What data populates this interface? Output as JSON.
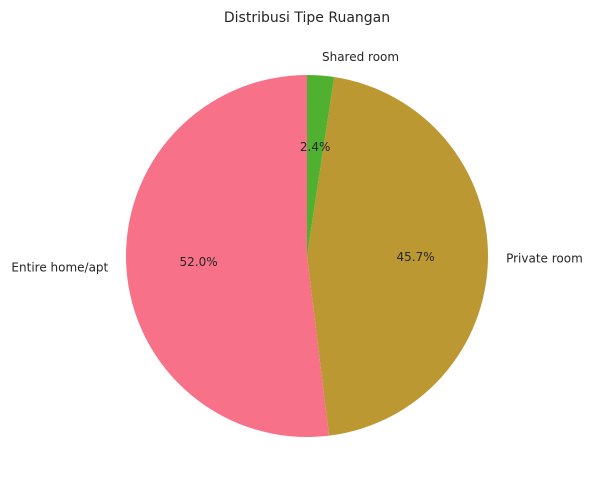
{
  "chart_data": {
    "type": "pie",
    "title": "Distribusi Tipe Ruangan",
    "categories": [
      "Entire home/apt",
      "Private room",
      "Shared room"
    ],
    "values": [
      52.0,
      45.7,
      2.4
    ],
    "percent_labels": [
      "52.0%",
      "45.7%",
      "2.4%"
    ],
    "colors": [
      "#f77189",
      "#bb9832",
      "#50b131"
    ],
    "start_angle_deg": 90,
    "direction": "counterclockwise",
    "legend": "none"
  }
}
